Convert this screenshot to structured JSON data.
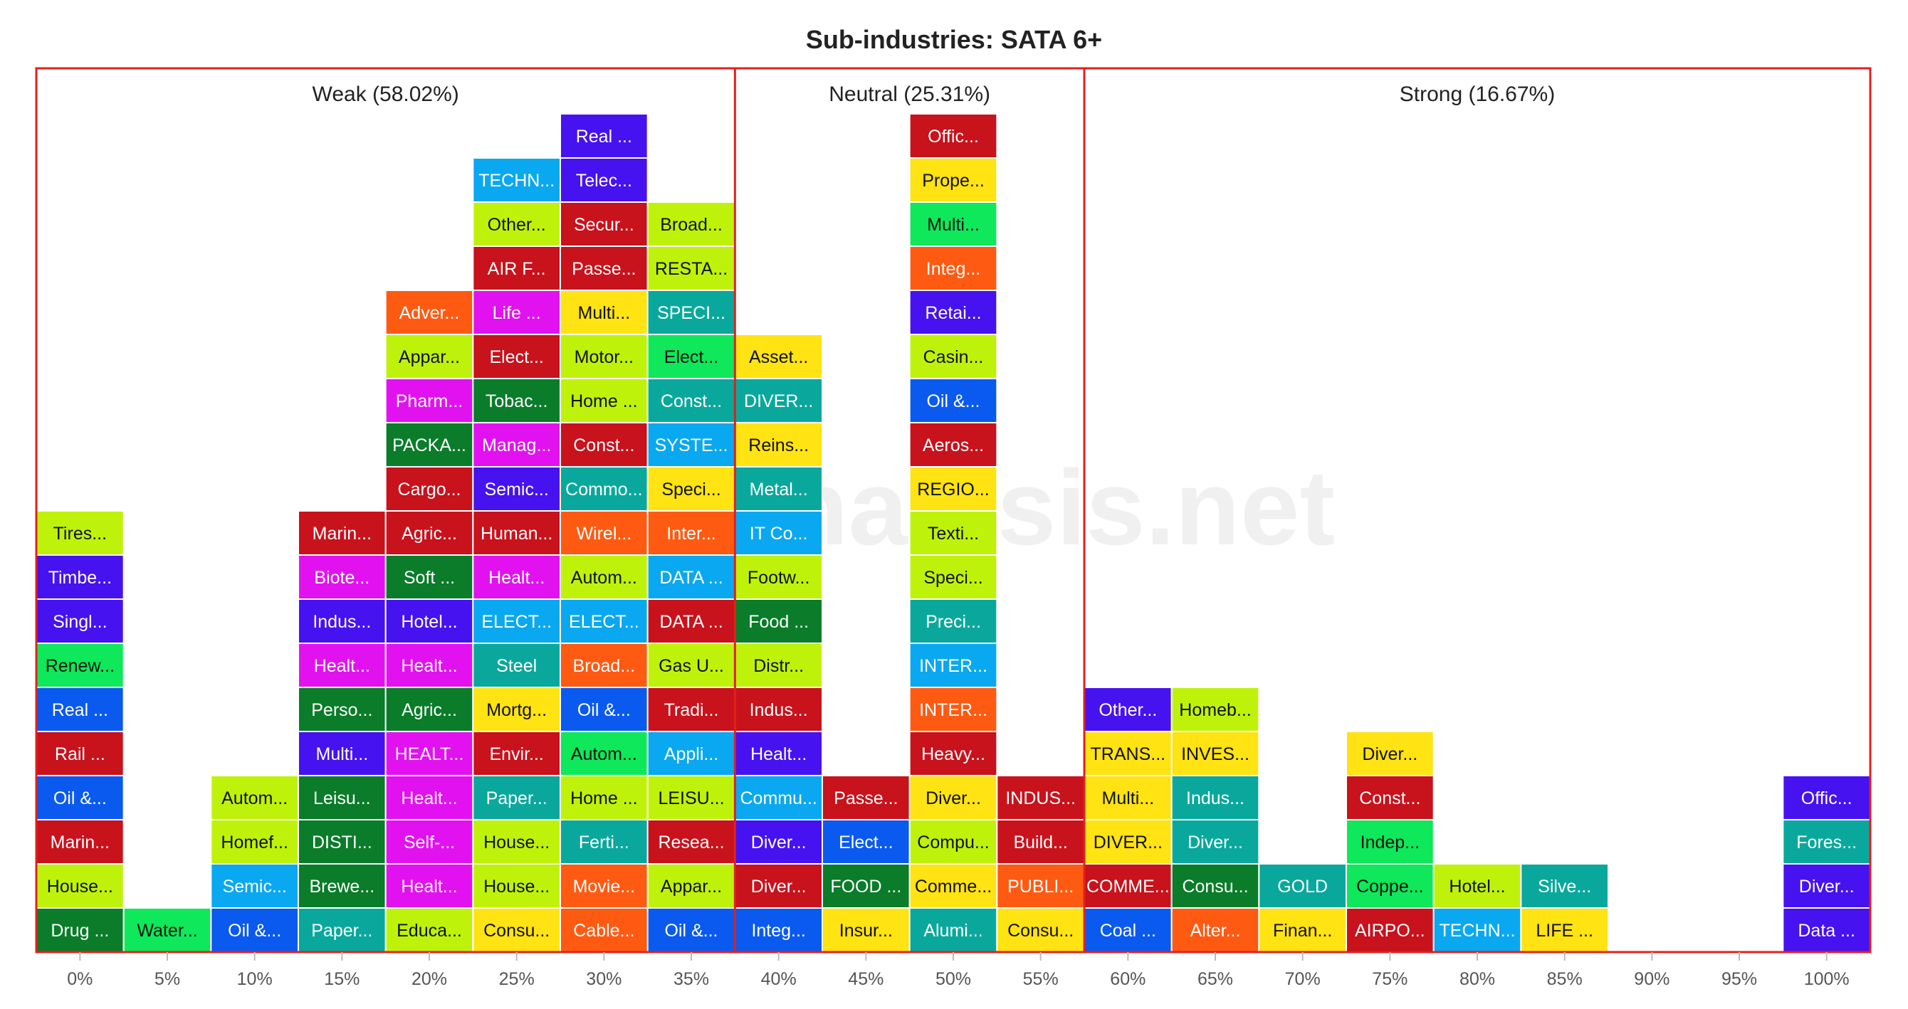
{
  "chart_data": {
    "type": "histogram-stack",
    "title": "Sub-industries: SATA 6+",
    "watermark": "stockanalysis.net",
    "border_color": "#e0211e",
    "tick_labels": [
      "0%",
      "5%",
      "10%",
      "15%",
      "20%",
      "25%",
      "30%",
      "35%",
      "40%",
      "45%",
      "50%",
      "55%",
      "60%",
      "65%",
      "70%",
      "75%",
      "80%",
      "85%",
      "90%",
      "95%",
      "100%"
    ],
    "zones": [
      {
        "label": "Weak (58.02%)",
        "from": 0,
        "to": 8
      },
      {
        "label": "Neutral (25.31%)",
        "from": 8,
        "to": 12
      },
      {
        "label": "Strong (16.67%)",
        "from": 12,
        "to": 21
      }
    ],
    "palette": {
      "g": "#0a7c2a",
      "l": "#bff20a",
      "y": "#ffe312",
      "m": "#0ee85a",
      "t": "#0aa89c",
      "c": "#0aa8f0",
      "b": "#0a5af0",
      "v": "#4612f0",
      "r": "#c8121c",
      "o": "#ff5a12",
      "p": "#e212f0"
    },
    "columns": [
      {
        "bin": "0%",
        "count": 10,
        "items": [
          {
            "label": "Drug ...",
            "color": "g"
          },
          {
            "label": "House...",
            "color": "l"
          },
          {
            "label": "Marin...",
            "color": "r"
          },
          {
            "label": "Oil &...",
            "color": "b"
          },
          {
            "label": "Rail ...",
            "color": "r"
          },
          {
            "label": "Real ...",
            "color": "b"
          },
          {
            "label": "Renew...",
            "color": "m"
          },
          {
            "label": "Singl...",
            "color": "v"
          },
          {
            "label": "Timbe...",
            "color": "v"
          },
          {
            "label": "Tires...",
            "color": "l"
          }
        ]
      },
      {
        "bin": "5%",
        "count": 1,
        "items": [
          {
            "label": "Water...",
            "color": "m"
          }
        ]
      },
      {
        "bin": "10%",
        "count": 4,
        "items": [
          {
            "label": "Oil &...",
            "color": "b"
          },
          {
            "label": "Semic...",
            "color": "c"
          },
          {
            "label": "Homef...",
            "color": "l"
          },
          {
            "label": "Autom...",
            "color": "l"
          }
        ]
      },
      {
        "bin": "15%",
        "count": 10,
        "items": [
          {
            "label": "Paper...",
            "color": "t"
          },
          {
            "label": "Brewe...",
            "color": "g"
          },
          {
            "label": "DISTI...",
            "color": "g"
          },
          {
            "label": "Leisu...",
            "color": "g"
          },
          {
            "label": "Multi...",
            "color": "v"
          },
          {
            "label": "Perso...",
            "color": "g"
          },
          {
            "label": "Healt...",
            "color": "p"
          },
          {
            "label": "Indus...",
            "color": "v"
          },
          {
            "label": "Biote...",
            "color": "p"
          },
          {
            "label": "Marin...",
            "color": "r"
          }
        ]
      },
      {
        "bin": "20%",
        "count": 15,
        "items": [
          {
            "label": "Educa...",
            "color": "l"
          },
          {
            "label": "Healt...",
            "color": "p"
          },
          {
            "label": "Self-...",
            "color": "p"
          },
          {
            "label": "Healt...",
            "color": "p"
          },
          {
            "label": "HEALT...",
            "color": "p"
          },
          {
            "label": "Agric...",
            "color": "g"
          },
          {
            "label": "Healt...",
            "color": "p"
          },
          {
            "label": "Hotel...",
            "color": "v"
          },
          {
            "label": "Soft ...",
            "color": "g"
          },
          {
            "label": "Agric...",
            "color": "r"
          },
          {
            "label": "Cargo...",
            "color": "r"
          },
          {
            "label": "PACKA...",
            "color": "g"
          },
          {
            "label": "Pharm...",
            "color": "p"
          },
          {
            "label": "Appar...",
            "color": "l"
          },
          {
            "label": "Adver...",
            "color": "o"
          }
        ]
      },
      {
        "bin": "25%",
        "count": 18,
        "items": [
          {
            "label": "Consu...",
            "color": "y"
          },
          {
            "label": "House...",
            "color": "l"
          },
          {
            "label": "House...",
            "color": "l"
          },
          {
            "label": "Paper...",
            "color": "t"
          },
          {
            "label": "Envir...",
            "color": "r"
          },
          {
            "label": "Mortg...",
            "color": "y"
          },
          {
            "label": "Steel",
            "color": "t"
          },
          {
            "label": "ELECT...",
            "color": "c"
          },
          {
            "label": "Healt...",
            "color": "p"
          },
          {
            "label": "Human...",
            "color": "r"
          },
          {
            "label": "Semic...",
            "color": "v"
          },
          {
            "label": "Manag...",
            "color": "p"
          },
          {
            "label": "Tobac...",
            "color": "g"
          },
          {
            "label": "Elect...",
            "color": "r"
          },
          {
            "label": "Life ...",
            "color": "p"
          },
          {
            "label": "AIR F...",
            "color": "r"
          },
          {
            "label": "Other...",
            "color": "l"
          },
          {
            "label": "TECHN...",
            "color": "c"
          }
        ]
      },
      {
        "bin": "30%",
        "count": 19,
        "items": [
          {
            "label": "Cable...",
            "color": "o"
          },
          {
            "label": "Movie...",
            "color": "o"
          },
          {
            "label": "Ferti...",
            "color": "t"
          },
          {
            "label": "Home ...",
            "color": "l"
          },
          {
            "label": "Autom...",
            "color": "m"
          },
          {
            "label": "Oil &...",
            "color": "b"
          },
          {
            "label": "Broad...",
            "color": "o"
          },
          {
            "label": "ELECT...",
            "color": "c"
          },
          {
            "label": "Autom...",
            "color": "l"
          },
          {
            "label": "Wirel...",
            "color": "o"
          },
          {
            "label": "Commo...",
            "color": "t"
          },
          {
            "label": "Const...",
            "color": "r"
          },
          {
            "label": "Home ...",
            "color": "l"
          },
          {
            "label": "Motor...",
            "color": "l"
          },
          {
            "label": "Multi...",
            "color": "y"
          },
          {
            "label": "Passe...",
            "color": "r"
          },
          {
            "label": "Secur...",
            "color": "r"
          },
          {
            "label": "Telec...",
            "color": "v"
          },
          {
            "label": "Real ...",
            "color": "v"
          }
        ]
      },
      {
        "bin": "35%",
        "count": 17,
        "items": [
          {
            "label": "Oil &...",
            "color": "b"
          },
          {
            "label": "Appar...",
            "color": "l"
          },
          {
            "label": "Resea...",
            "color": "r"
          },
          {
            "label": "LEISU...",
            "color": "l"
          },
          {
            "label": "Appli...",
            "color": "c"
          },
          {
            "label": "Tradi...",
            "color": "r"
          },
          {
            "label": "Gas U...",
            "color": "l"
          },
          {
            "label": "DATA ...",
            "color": "r"
          },
          {
            "label": "DATA ...",
            "color": "c"
          },
          {
            "label": "Inter...",
            "color": "o"
          },
          {
            "label": "Speci...",
            "color": "y"
          },
          {
            "label": "SYSTE...",
            "color": "c"
          },
          {
            "label": "Const...",
            "color": "t"
          },
          {
            "label": "Elect...",
            "color": "m"
          },
          {
            "label": "SPECI...",
            "color": "t"
          },
          {
            "label": "RESTA...",
            "color": "l"
          },
          {
            "label": "Broad...",
            "color": "l"
          }
        ]
      },
      {
        "bin": "40%",
        "count": 14,
        "items": [
          {
            "label": "Integ...",
            "color": "b"
          },
          {
            "label": "Diver...",
            "color": "r"
          },
          {
            "label": "Diver...",
            "color": "v"
          },
          {
            "label": "Commu...",
            "color": "c"
          },
          {
            "label": "Healt...",
            "color": "v"
          },
          {
            "label": "Indus...",
            "color": "r"
          },
          {
            "label": "Distr...",
            "color": "l"
          },
          {
            "label": "Food ...",
            "color": "g"
          },
          {
            "label": "Footw...",
            "color": "l"
          },
          {
            "label": "IT Co...",
            "color": "c"
          },
          {
            "label": "Metal...",
            "color": "t"
          },
          {
            "label": "Reins...",
            "color": "y"
          },
          {
            "label": "DIVER...",
            "color": "t"
          },
          {
            "label": "Asset...",
            "color": "y"
          }
        ]
      },
      {
        "bin": "45%",
        "count": 4,
        "items": [
          {
            "label": "Insur...",
            "color": "y"
          },
          {
            "label": "FOOD ...",
            "color": "g"
          },
          {
            "label": "Elect...",
            "color": "b"
          },
          {
            "label": "Passe...",
            "color": "r"
          }
        ]
      },
      {
        "bin": "50%",
        "count": 19,
        "items": [
          {
            "label": "Alumi...",
            "color": "t"
          },
          {
            "label": "Comme...",
            "color": "y"
          },
          {
            "label": "Compu...",
            "color": "l"
          },
          {
            "label": "Diver...",
            "color": "y"
          },
          {
            "label": "Heavy...",
            "color": "r"
          },
          {
            "label": "INTER...",
            "color": "o"
          },
          {
            "label": "INTER...",
            "color": "c"
          },
          {
            "label": "Preci...",
            "color": "t"
          },
          {
            "label": "Speci...",
            "color": "l"
          },
          {
            "label": "Texti...",
            "color": "l"
          },
          {
            "label": "REGIO...",
            "color": "y"
          },
          {
            "label": "Aeros...",
            "color": "r"
          },
          {
            "label": "Oil &...",
            "color": "b"
          },
          {
            "label": "Casin...",
            "color": "l"
          },
          {
            "label": "Retai...",
            "color": "v"
          },
          {
            "label": "Integ...",
            "color": "o"
          },
          {
            "label": "Multi...",
            "color": "m"
          },
          {
            "label": "Prope...",
            "color": "y"
          },
          {
            "label": "Offic...",
            "color": "r"
          }
        ]
      },
      {
        "bin": "55%",
        "count": 4,
        "items": [
          {
            "label": "Consu...",
            "color": "y"
          },
          {
            "label": "PUBLI...",
            "color": "o"
          },
          {
            "label": "Build...",
            "color": "r"
          },
          {
            "label": "INDUS...",
            "color": "r"
          }
        ]
      },
      {
        "bin": "60%",
        "count": 6,
        "items": [
          {
            "label": "Coal ...",
            "color": "b"
          },
          {
            "label": "COMME...",
            "color": "r"
          },
          {
            "label": "DIVER...",
            "color": "y"
          },
          {
            "label": "Multi...",
            "color": "y"
          },
          {
            "label": "TRANS...",
            "color": "y"
          },
          {
            "label": "Other...",
            "color": "v"
          }
        ]
      },
      {
        "bin": "65%",
        "count": 6,
        "items": [
          {
            "label": "Alter...",
            "color": "o"
          },
          {
            "label": "Consu...",
            "color": "g"
          },
          {
            "label": "Diver...",
            "color": "t"
          },
          {
            "label": "Indus...",
            "color": "t"
          },
          {
            "label": "INVES...",
            "color": "y"
          },
          {
            "label": "Homeb...",
            "color": "l"
          }
        ]
      },
      {
        "bin": "70%",
        "count": 2,
        "items": [
          {
            "label": "Finan...",
            "color": "y"
          },
          {
            "label": "GOLD",
            "color": "t"
          }
        ]
      },
      {
        "bin": "75%",
        "count": 5,
        "items": [
          {
            "label": "AIRPO...",
            "color": "r"
          },
          {
            "label": "Coppe...",
            "color": "m"
          },
          {
            "label": "Indep...",
            "color": "m"
          },
          {
            "label": "Const...",
            "color": "r"
          },
          {
            "label": "Diver...",
            "color": "y"
          }
        ]
      },
      {
        "bin": "80%",
        "count": 2,
        "items": [
          {
            "label": "TECHN...",
            "color": "c"
          },
          {
            "label": "Hotel...",
            "color": "l"
          }
        ]
      },
      {
        "bin": "85%",
        "count": 2,
        "items": [
          {
            "label": "LIFE ...",
            "color": "y"
          },
          {
            "label": "Silve...",
            "color": "t"
          }
        ]
      },
      {
        "bin": "90%",
        "count": 0,
        "items": []
      },
      {
        "bin": "95%",
        "count": 0,
        "items": []
      },
      {
        "bin": "100%",
        "count": 4,
        "items": [
          {
            "label": "Data ...",
            "color": "v"
          },
          {
            "label": "Diver...",
            "color": "v"
          },
          {
            "label": "Fores...",
            "color": "t"
          },
          {
            "label": "Offic...",
            "color": "v"
          }
        ]
      }
    ]
  }
}
